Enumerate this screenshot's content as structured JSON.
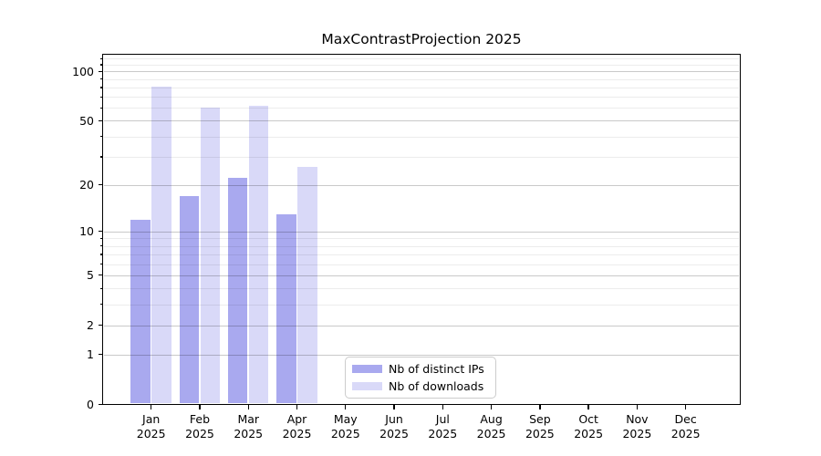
{
  "title": "MaxContrastProjection 2025",
  "chart_data": {
    "type": "bar",
    "title": "MaxContrastProjection 2025",
    "categories": [
      {
        "month": "Jan",
        "year": "2025"
      },
      {
        "month": "Feb",
        "year": "2025"
      },
      {
        "month": "Mar",
        "year": "2025"
      },
      {
        "month": "Apr",
        "year": "2025"
      },
      {
        "month": "May",
        "year": "2025"
      },
      {
        "month": "Jun",
        "year": "2025"
      },
      {
        "month": "Jul",
        "year": "2025"
      },
      {
        "month": "Aug",
        "year": "2025"
      },
      {
        "month": "Sep",
        "year": "2025"
      },
      {
        "month": "Oct",
        "year": "2025"
      },
      {
        "month": "Nov",
        "year": "2025"
      },
      {
        "month": "Dec",
        "year": "2025"
      }
    ],
    "series": [
      {
        "name": "Nb of distinct IPs",
        "color": "#a9a9ef",
        "values": [
          12,
          17,
          22,
          13,
          0,
          0,
          0,
          0,
          0,
          0,
          0,
          0
        ]
      },
      {
        "name": "Nb of downloads",
        "color": "#d9d9f8",
        "values": [
          81,
          60,
          62,
          26,
          0,
          0,
          0,
          0,
          0,
          0,
          0,
          0
        ]
      }
    ],
    "xlabel": "",
    "ylabel": "",
    "yscale": "log1p",
    "ylim": [
      0,
      127
    ],
    "ytick_values": [
      0,
      1,
      2,
      5,
      10,
      20,
      50,
      100
    ],
    "ytick_labels": [
      "0",
      "1",
      "2",
      "5",
      "10",
      "20",
      "50",
      "100"
    ],
    "grid": "horizontal, major and minor, drawn over bars",
    "legend_position": "bottom center inside plot"
  },
  "legend": {
    "items": [
      {
        "label": "Nb of distinct IPs",
        "color": "#a9a9ef"
      },
      {
        "label": "Nb of downloads",
        "color": "#d9d9f8"
      }
    ]
  },
  "colors": {
    "background": "#ffffff",
    "axis": "#000000",
    "grid_major": "#c9c9c9",
    "grid_minor": "#ececec",
    "legend_border": "#cccccc",
    "text": "#000000"
  }
}
